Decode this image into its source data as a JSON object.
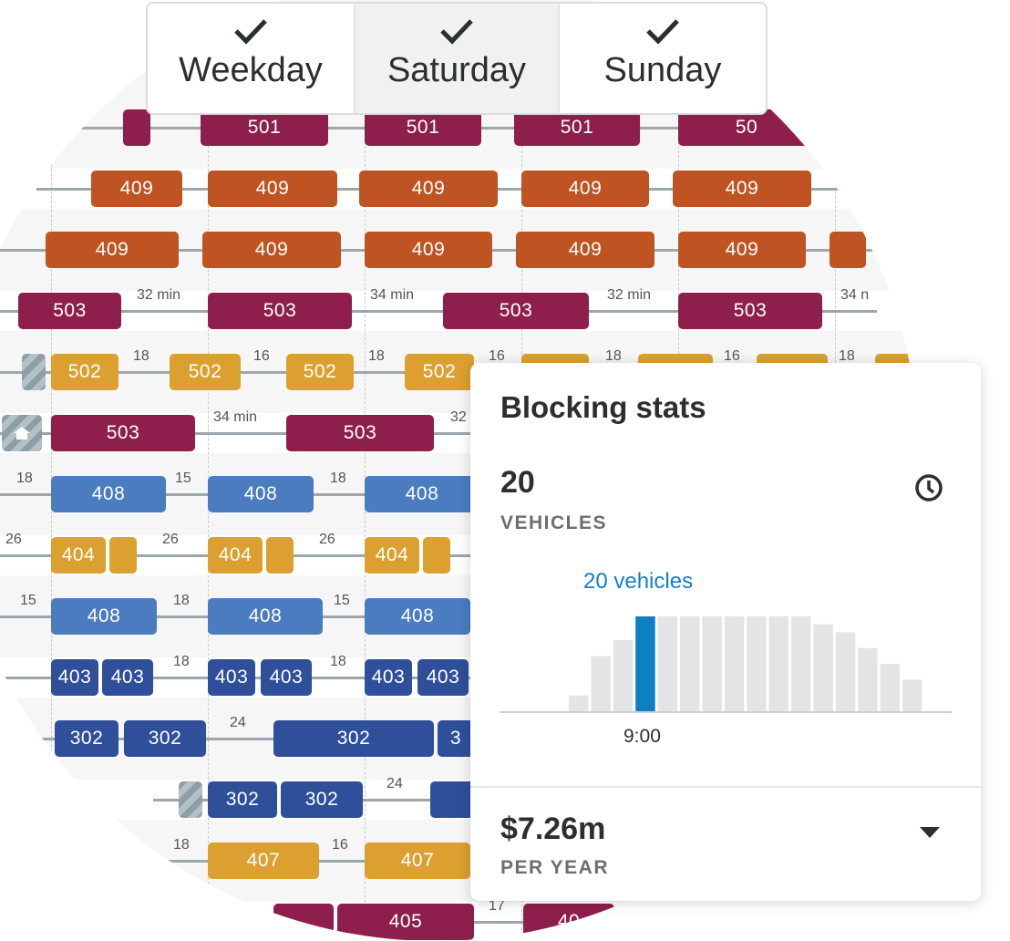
{
  "tabs": [
    {
      "label": "Weekday",
      "checked": true
    },
    {
      "label": "Saturday",
      "checked": true,
      "selected": true
    },
    {
      "label": "Sunday",
      "checked": true
    }
  ],
  "schedule": {
    "rows": [
      {
        "y": 140,
        "blocks": [
          [
            "c501",
            "",
            135,
            30
          ],
          [
            "c501",
            "501",
            220,
            140
          ],
          [
            "c501",
            "501",
            400,
            128
          ],
          [
            "c501",
            "501",
            564,
            138
          ],
          [
            "c501",
            "50",
            744,
            150
          ]
        ],
        "gaps": []
      },
      {
        "y": 207,
        "blocks": [
          [
            "c409",
            "409",
            100,
            100
          ],
          [
            "c409",
            "409",
            228,
            142
          ],
          [
            "c409",
            "409",
            394,
            152
          ],
          [
            "c409",
            "409",
            572,
            140
          ],
          [
            "c409",
            "409",
            738,
            152
          ]
        ],
        "gaps": []
      },
      {
        "y": 274,
        "blocks": [
          [
            "c409",
            "409",
            50,
            146
          ],
          [
            "c409",
            "409",
            222,
            152
          ],
          [
            "c409",
            "409",
            400,
            140
          ],
          [
            "c409",
            "409",
            566,
            152
          ],
          [
            "c409",
            "409",
            744,
            140
          ],
          [
            "c409",
            "",
            910,
            40
          ]
        ],
        "gaps": []
      },
      {
        "y": 341,
        "blocks": [
          [
            "c503",
            "503",
            20,
            113
          ],
          [
            "c503",
            "503",
            228,
            158
          ],
          [
            "c503",
            "503",
            486,
            160
          ],
          [
            "c503",
            "503",
            744,
            158
          ]
        ],
        "gaps": [
          [
            "32 min",
            150
          ],
          [
            "34 min",
            406
          ],
          [
            "32 min",
            666
          ],
          [
            "34 n",
            922
          ]
        ]
      },
      {
        "y": 408,
        "blocks": [
          [
            "c502",
            "502",
            56,
            74
          ],
          [
            "c502",
            "502",
            186,
            78
          ],
          [
            "c502",
            "502",
            314,
            74
          ],
          [
            "c502",
            "502",
            444,
            76
          ],
          [
            "c502",
            "",
            572,
            74
          ],
          [
            "c502",
            "",
            700,
            82
          ],
          [
            "c502",
            "",
            830,
            78
          ],
          [
            "c502",
            "",
            960,
            40
          ]
        ],
        "gaps": [
          [
            "18",
            146
          ],
          [
            "16",
            278
          ],
          [
            "18",
            404
          ],
          [
            "16",
            536
          ],
          [
            "18",
            664
          ],
          [
            "16",
            794
          ],
          [
            "18",
            920
          ]
        ],
        "hatch": [
          24
        ]
      },
      {
        "y": 475,
        "blocks": [
          [
            "c503",
            "503",
            56,
            158
          ],
          [
            "c503",
            "503",
            314,
            162
          ]
        ],
        "gaps": [
          [
            "34 min",
            234
          ],
          [
            "32",
            494
          ]
        ],
        "home": [
          2
        ]
      },
      {
        "y": 542,
        "blocks": [
          [
            "c408",
            "408",
            56,
            126
          ],
          [
            "c408",
            "408",
            228,
            116
          ],
          [
            "c408",
            "408",
            400,
            126
          ]
        ],
        "gaps": [
          [
            "18",
            18
          ],
          [
            "15",
            192
          ],
          [
            "18",
            362
          ]
        ]
      },
      {
        "y": 609,
        "blocks": [
          [
            "c404",
            "404",
            56,
            60
          ],
          [
            "c404",
            "",
            120,
            30
          ],
          [
            "c404",
            "404",
            228,
            60
          ],
          [
            "c404",
            "",
            292,
            30
          ],
          [
            "c404",
            "404",
            400,
            60
          ],
          [
            "c404",
            "",
            464,
            30
          ]
        ],
        "gaps": [
          [
            "26",
            6
          ],
          [
            "26",
            178
          ],
          [
            "26",
            350
          ]
        ]
      },
      {
        "y": 676,
        "blocks": [
          [
            "c408",
            "408",
            56,
            116
          ],
          [
            "c408",
            "408",
            228,
            126
          ],
          [
            "c408",
            "408",
            400,
            116
          ]
        ],
        "gaps": [
          [
            "15",
            22
          ],
          [
            "18",
            190
          ],
          [
            "15",
            366
          ]
        ]
      },
      {
        "y": 743,
        "blocks": [
          [
            "c403",
            "403",
            56,
            52
          ],
          [
            "c403",
            "403",
            112,
            56
          ],
          [
            "c403",
            "403",
            228,
            52
          ],
          [
            "c403",
            "403",
            286,
            56
          ],
          [
            "c403",
            "403",
            400,
            52
          ],
          [
            "c403",
            "403",
            458,
            56
          ]
        ],
        "gaps": [
          [
            "18",
            190
          ],
          [
            "18",
            362
          ]
        ]
      },
      {
        "y": 810,
        "blocks": [
          [
            "c302",
            "302",
            60,
            70
          ],
          [
            "c302",
            "302",
            136,
            90
          ],
          [
            "c302",
            "302",
            300,
            176
          ],
          [
            "c302",
            "3",
            480,
            40
          ]
        ],
        "gaps": [
          [
            "24",
            252
          ]
        ]
      },
      {
        "y": 877,
        "blocks": [
          [
            "c302",
            "302",
            228,
            76
          ],
          [
            "c302",
            "302",
            308,
            90
          ],
          [
            "c302",
            "",
            472,
            50
          ]
        ],
        "gaps": [
          [
            "24",
            424
          ]
        ],
        "hatch": [
          196
        ]
      },
      {
        "y": 944,
        "blocks": [
          [
            "c407",
            "407",
            228,
            122
          ],
          [
            "c407",
            "407",
            400,
            116
          ]
        ],
        "gaps": [
          [
            "18",
            190
          ],
          [
            "16",
            364
          ]
        ]
      },
      {
        "y": 1011,
        "blocks": [
          [
            "c405",
            "",
            300,
            66
          ],
          [
            "c405",
            "405",
            370,
            150
          ],
          [
            "c405",
            "40",
            574,
            100
          ]
        ],
        "gaps": [
          [
            "17",
            536
          ]
        ]
      }
    ]
  },
  "card": {
    "title": "Blocking stats",
    "vehicles_value": "20",
    "vehicles_label": "VEHICLES",
    "highlight_label": "20 vehicles",
    "time_label": "9:00",
    "cost_value": "$7.26m",
    "cost_label": "PER YEAR",
    "histogram": [
      2,
      7,
      9,
      12,
      12,
      12,
      12,
      12,
      12,
      12,
      12,
      11,
      10,
      8,
      6,
      4
    ],
    "highlight_index": 3,
    "colors": {
      "bar": "#e3e4e6",
      "highlight": "#0e7fc0"
    }
  }
}
